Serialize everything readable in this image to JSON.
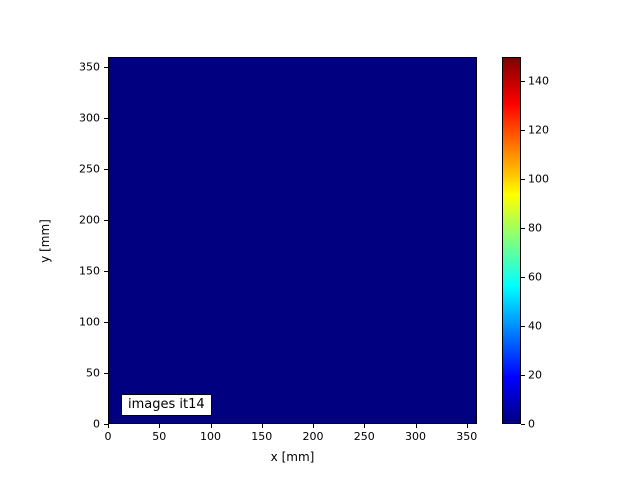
{
  "chart_data": {
    "type": "heatmap",
    "title": "",
    "xlabel": "x [mm]",
    "ylabel": "y [mm]",
    "xlim": [
      0,
      360
    ],
    "ylim": [
      0,
      360
    ],
    "x_ticks": [
      0,
      50,
      100,
      150,
      200,
      250,
      300,
      350
    ],
    "y_ticks": [
      0,
      50,
      100,
      150,
      200,
      250,
      300,
      350
    ],
    "grid": false,
    "annotation": "images it14",
    "uniform_value": 0,
    "fill_color": "#000080",
    "colorbar": {
      "range": [
        0,
        150
      ],
      "ticks": [
        0,
        20,
        40,
        60,
        80,
        100,
        120,
        140
      ],
      "colormap": "jet",
      "stops": [
        {
          "pos": 0.0,
          "color": "#000080"
        },
        {
          "pos": 0.125,
          "color": "#0000ff"
        },
        {
          "pos": 0.375,
          "color": "#00ffff"
        },
        {
          "pos": 0.625,
          "color": "#ffff00"
        },
        {
          "pos": 0.875,
          "color": "#ff0000"
        },
        {
          "pos": 1.0,
          "color": "#800000"
        }
      ]
    },
    "background_color": "#ffffff"
  }
}
